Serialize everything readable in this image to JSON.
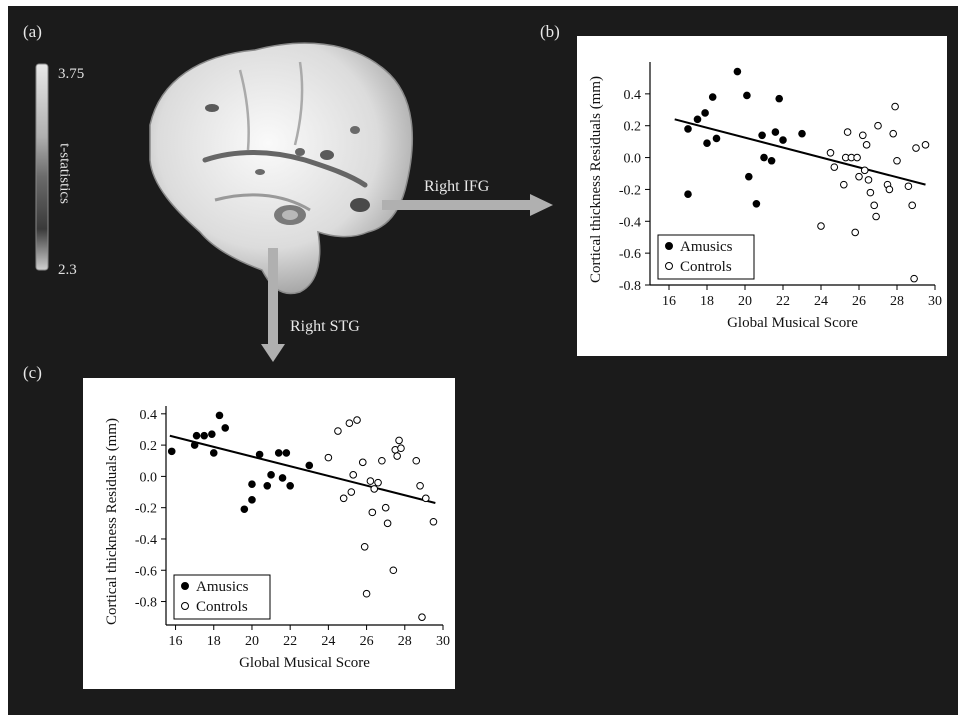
{
  "panels": {
    "a": "(a)",
    "b": "(b)",
    "c": "(c)"
  },
  "colorbar": {
    "max": "3.75",
    "min": "2.3",
    "label": "t-statistics"
  },
  "arrows": {
    "ifg": "Right IFG",
    "stg": "Right STG"
  },
  "chart_data": [
    {
      "id": "b",
      "type": "scatter",
      "xlabel": "Global Musical Score",
      "ylabel": "Cortical thickness Residuals (mm)",
      "xlim": [
        15,
        30
      ],
      "ylim": [
        -0.8,
        0.6
      ],
      "xticks": [
        "16",
        "18",
        "20",
        "22",
        "24",
        "26",
        "28",
        "30"
      ],
      "yticks": [
        "0.4",
        "0.2",
        "0.0",
        "-0.2",
        "-0.4",
        "-0.6",
        "-0.8"
      ],
      "legend": {
        "position": "bottom-left",
        "entries": [
          "Amusics",
          "Controls"
        ]
      },
      "regression": {
        "x1": 16.3,
        "y1": 0.24,
        "x2": 29.5,
        "y2": -0.17
      },
      "series": [
        {
          "name": "Amusics",
          "marker": "filled",
          "points": [
            [
              17.0,
              0.18
            ],
            [
              17.0,
              -0.23
            ],
            [
              17.5,
              0.24
            ],
            [
              17.9,
              0.28
            ],
            [
              18.0,
              0.09
            ],
            [
              18.3,
              0.38
            ],
            [
              18.5,
              0.12
            ],
            [
              19.6,
              0.54
            ],
            [
              20.1,
              0.39
            ],
            [
              20.2,
              -0.12
            ],
            [
              20.6,
              -0.29
            ],
            [
              20.9,
              0.14
            ],
            [
              21.0,
              0.0
            ],
            [
              21.4,
              -0.02
            ],
            [
              21.6,
              0.16
            ],
            [
              21.8,
              0.37
            ],
            [
              22.0,
              0.11
            ],
            [
              23.0,
              0.15
            ]
          ]
        },
        {
          "name": "Controls",
          "marker": "open",
          "points": [
            [
              24.0,
              -0.43
            ],
            [
              24.5,
              0.03
            ],
            [
              24.7,
              -0.06
            ],
            [
              25.2,
              -0.17
            ],
            [
              25.3,
              0.0
            ],
            [
              25.4,
              0.16
            ],
            [
              25.6,
              0.0
            ],
            [
              25.8,
              -0.47
            ],
            [
              25.9,
              0.0
            ],
            [
              26.0,
              -0.12
            ],
            [
              26.2,
              0.14
            ],
            [
              26.3,
              -0.08
            ],
            [
              26.4,
              0.08
            ],
            [
              26.5,
              -0.14
            ],
            [
              26.6,
              -0.22
            ],
            [
              26.8,
              -0.3
            ],
            [
              26.9,
              -0.37
            ],
            [
              27.0,
              0.2
            ],
            [
              27.5,
              -0.17
            ],
            [
              27.6,
              -0.2
            ],
            [
              27.8,
              0.15
            ],
            [
              27.9,
              0.32
            ],
            [
              28.0,
              -0.02
            ],
            [
              28.6,
              -0.18
            ],
            [
              28.8,
              -0.3
            ],
            [
              28.9,
              -0.76
            ],
            [
              29.0,
              0.06
            ],
            [
              29.5,
              0.08
            ]
          ]
        }
      ]
    },
    {
      "id": "c",
      "type": "scatter",
      "xlabel": "Global Musical Score",
      "ylabel": "Cortical thickness Residuals (mm)",
      "xlim": [
        15.5,
        30
      ],
      "ylim": [
        -0.95,
        0.45
      ],
      "xticks": [
        "16",
        "18",
        "20",
        "22",
        "24",
        "26",
        "28",
        "30"
      ],
      "yticks": [
        "0.4",
        "0.2",
        "0.0",
        "-0.2",
        "-0.4",
        "-0.6",
        "-0.8"
      ],
      "legend": {
        "position": "bottom-left",
        "entries": [
          "Amusics",
          "Controls"
        ]
      },
      "regression": {
        "x1": 15.7,
        "y1": 0.26,
        "x2": 29.6,
        "y2": -0.17
      },
      "series": [
        {
          "name": "Amusics",
          "marker": "filled",
          "points": [
            [
              15.8,
              0.16
            ],
            [
              17.0,
              0.2
            ],
            [
              17.1,
              0.26
            ],
            [
              17.5,
              0.26
            ],
            [
              17.9,
              0.27
            ],
            [
              18.0,
              0.15
            ],
            [
              18.3,
              0.39
            ],
            [
              18.6,
              0.31
            ],
            [
              19.6,
              -0.21
            ],
            [
              20.0,
              -0.05
            ],
            [
              20.0,
              -0.15
            ],
            [
              20.4,
              0.14
            ],
            [
              20.8,
              -0.06
            ],
            [
              21.0,
              0.01
            ],
            [
              21.4,
              0.15
            ],
            [
              21.6,
              -0.01
            ],
            [
              21.8,
              0.15
            ],
            [
              22.0,
              -0.06
            ],
            [
              23.0,
              0.07
            ]
          ]
        },
        {
          "name": "Controls",
          "marker": "open",
          "points": [
            [
              24.0,
              0.12
            ],
            [
              24.5,
              0.29
            ],
            [
              24.8,
              -0.14
            ],
            [
              25.1,
              0.34
            ],
            [
              25.2,
              -0.1
            ],
            [
              25.3,
              0.01
            ],
            [
              25.5,
              0.36
            ],
            [
              25.8,
              0.09
            ],
            [
              25.9,
              -0.45
            ],
            [
              26.0,
              -0.75
            ],
            [
              26.2,
              -0.03
            ],
            [
              26.3,
              -0.23
            ],
            [
              26.4,
              -0.08
            ],
            [
              26.6,
              -0.04
            ],
            [
              26.8,
              0.1
            ],
            [
              27.0,
              -0.2
            ],
            [
              27.1,
              -0.3
            ],
            [
              27.4,
              -0.6
            ],
            [
              27.5,
              0.17
            ],
            [
              27.6,
              0.13
            ],
            [
              27.7,
              0.23
            ],
            [
              27.8,
              0.18
            ],
            [
              28.6,
              0.1
            ],
            [
              28.8,
              -0.06
            ],
            [
              28.9,
              -0.9
            ],
            [
              29.1,
              -0.14
            ],
            [
              29.5,
              -0.29
            ]
          ]
        }
      ]
    }
  ]
}
